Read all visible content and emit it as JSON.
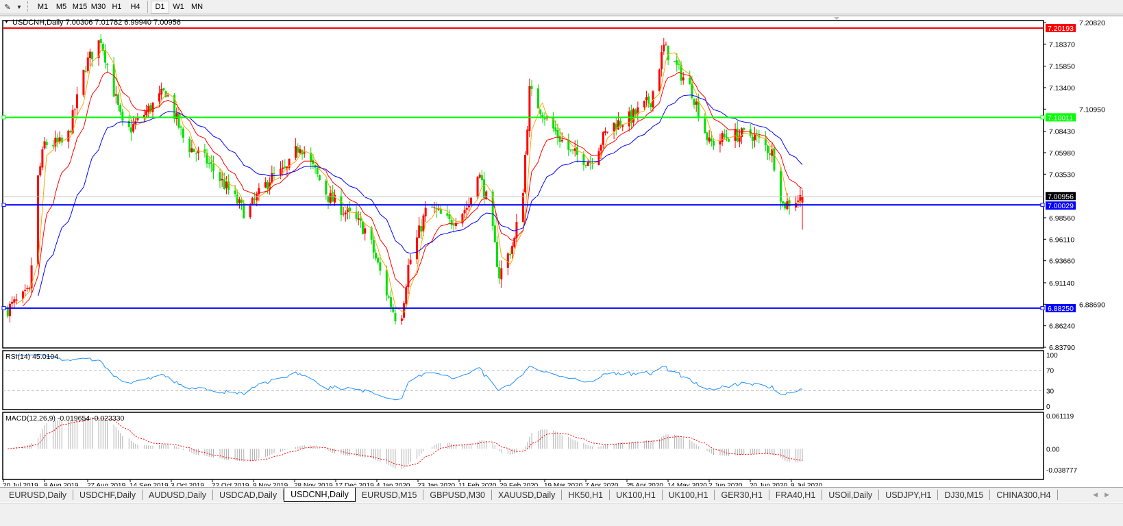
{
  "toolbar": {
    "timeframes": [
      "M1",
      "M5",
      "M15",
      "M30",
      "H1",
      "H4",
      "D1",
      "W1",
      "MN"
    ],
    "active_timeframe": "D1"
  },
  "chart": {
    "header": "USDCNH,Daily  7.00306 7.01782 6.99940 7.00956",
    "price_axis": [
      "7.20820",
      "7.18370",
      "7.15850",
      "7.13400",
      "7.10950",
      "7.08430",
      "7.05980",
      "7.03530",
      "6.98560",
      "6.96110",
      "6.93660",
      "6.91140",
      "6.88690",
      "6.86240",
      "6.83790"
    ],
    "hlines": [
      {
        "price": "7.20193",
        "color": "#ff0000",
        "label_text": "#ffffff"
      },
      {
        "price": "7.10011",
        "color": "#00ff00",
        "label_text": "#ffffff"
      },
      {
        "price": "7.00029",
        "color": "#0000ff",
        "label_text": "#ffffff"
      },
      {
        "price": "6.88250",
        "color": "#0000ff",
        "label_text": "#ffffff"
      }
    ],
    "current_price": "7.00956",
    "colors": {
      "bull": "#ff0000",
      "bear": "#00e000",
      "ma_fast": "#ffa500",
      "ma_mid": "#ff0000",
      "ma_slow": "#0000ff",
      "rsi": "#1e90ff",
      "macd_hist": "#b0b0b0",
      "macd_signal": "#ff0000"
    },
    "date_axis": [
      "20 Jul 2019",
      "8 Aug 2019",
      "27 Aug 2019",
      "14 Sep 2019",
      "3 Oct 2019",
      "22 Oct 2019",
      "9 Nov 2019",
      "28 Nov 2019",
      "17 Dec 2019",
      "4 Jan 2020",
      "23 Jan 2020",
      "11 Feb 2020",
      "29 Feb 2020",
      "19 Mar 2020",
      "7 Apr 2020",
      "25 Apr 2020",
      "14 May 2020",
      "2 Jun 2020",
      "20 Jun 2020",
      "9 Jul 2020"
    ],
    "rsi": {
      "label": "RSI(14) 45.0104",
      "axis": [
        "100",
        "70",
        "30",
        "0"
      ]
    },
    "macd": {
      "label": "MACD(12,26,9) -0.019654 -0.023330",
      "axis": [
        "0.061119",
        "0.00",
        "-0.038777"
      ]
    }
  },
  "chart_data": {
    "type": "candlestick",
    "symbol": "USDCNH",
    "timeframe": "Daily",
    "ylim": [
      6.8379,
      7.2082
    ],
    "approx_close_path": [
      [
        "2019-07-20",
        6.878
      ],
      [
        "2019-08-01",
        6.9
      ],
      [
        "2019-08-05",
        7.03
      ],
      [
        "2019-08-08",
        7.07
      ],
      [
        "2019-08-18",
        7.07
      ],
      [
        "2019-08-27",
        7.16
      ],
      [
        "2019-09-03",
        7.19
      ],
      [
        "2019-09-14",
        7.08
      ],
      [
        "2019-10-03",
        7.13
      ],
      [
        "2019-10-12",
        7.07
      ],
      [
        "2019-10-22",
        7.05
      ],
      [
        "2019-11-09",
        6.99
      ],
      [
        "2019-11-20",
        7.03
      ],
      [
        "2019-11-28",
        7.04
      ],
      [
        "2019-12-04",
        7.07
      ],
      [
        "2019-12-17",
        7.01
      ],
      [
        "2020-01-04",
        6.97
      ],
      [
        "2020-01-13",
        6.9
      ],
      [
        "2020-01-19",
        6.86
      ],
      [
        "2020-01-23",
        6.93
      ],
      [
        "2020-02-01",
        7.0
      ],
      [
        "2020-02-11",
        6.98
      ],
      [
        "2020-02-20",
        7.0
      ],
      [
        "2020-02-24",
        7.04
      ],
      [
        "2020-02-29",
        7.0
      ],
      [
        "2020-03-05",
        6.92
      ],
      [
        "2020-03-12",
        6.96
      ],
      [
        "2020-03-16",
        7.02
      ],
      [
        "2020-03-19",
        7.13
      ],
      [
        "2020-03-29",
        7.09
      ],
      [
        "2020-04-07",
        7.06
      ],
      [
        "2020-04-16",
        7.05
      ],
      [
        "2020-04-25",
        7.09
      ],
      [
        "2020-05-05",
        7.1
      ],
      [
        "2020-05-14",
        7.12
      ],
      [
        "2020-05-20",
        7.18
      ],
      [
        "2020-06-02",
        7.13
      ],
      [
        "2020-06-10",
        7.07
      ],
      [
        "2020-06-20",
        7.08
      ],
      [
        "2020-06-30",
        7.08
      ],
      [
        "2020-07-09",
        7.06
      ],
      [
        "2020-07-14",
        7.0
      ],
      [
        "2020-07-23",
        7.00956
      ]
    ],
    "last_bar": {
      "open": 7.00306,
      "high": 7.01782,
      "low": 6.9994,
      "close": 7.00956
    }
  },
  "tabs": [
    "EURUSD,Daily",
    "USDCHF,Daily",
    "AUDUSD,Daily",
    "USDCAD,Daily",
    "USDCNH,Daily",
    "EURUSD,M15",
    "GBPUSD,M30",
    "XAUUSD,Daily",
    "HK50,H1",
    "UK100,H1",
    "UK100,H1",
    "GER30,H1",
    "FRA40,H1",
    "USOil,Daily",
    "USDJPY,H1",
    "DJ30,M15",
    "CHINA300,H4"
  ],
  "active_tab": "USDCNH,Daily"
}
